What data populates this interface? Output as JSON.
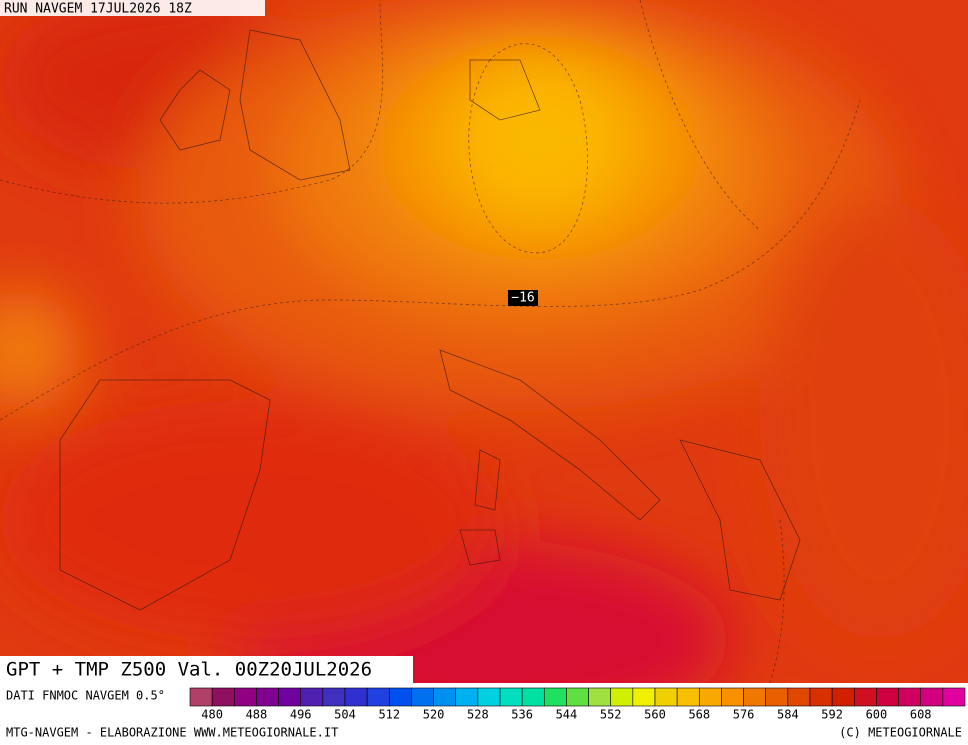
{
  "header": {
    "run": "RUN NAVGEM 17JUL2026 18Z"
  },
  "map": {
    "label": "−16"
  },
  "footer": {
    "title": "GPT + TMP Z500 Val. 00Z20JUL2026",
    "source": "DATI FNMOC NAVGEM 0.5°",
    "credit": "MTG-NAVGEM - ELABORAZIONE WWW.METEOGIORNALE.IT",
    "copyright": "(C) METEOGIORNALE"
  },
  "legend": {
    "labels": [
      480,
      488,
      496,
      504,
      512,
      520,
      528,
      536,
      544,
      552,
      560,
      568,
      576,
      584,
      592,
      600,
      608
    ],
    "colors": [
      "#b04068",
      "#901060",
      "#900080",
      "#800090",
      "#7000a0",
      "#5020b0",
      "#4030c0",
      "#3030d0",
      "#2040e0",
      "#0050f0",
      "#0070f0",
      "#0090f0",
      "#00b0f0",
      "#00d0e0",
      "#00e0c0",
      "#00e0a0",
      "#20e060",
      "#60e040",
      "#a0e040",
      "#d0f000",
      "#f0f000",
      "#f0d000",
      "#f8c000",
      "#f8a800",
      "#f89000",
      "#f07800",
      "#e86000",
      "#e04800",
      "#d83000",
      "#d02000",
      "#d01020",
      "#d00040",
      "#d00060",
      "#d00080",
      "#e000a0"
    ]
  }
}
